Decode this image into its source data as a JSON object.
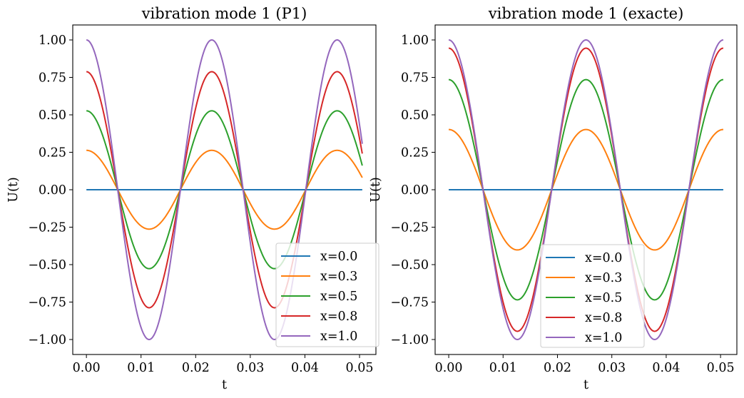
{
  "chart_data": [
    {
      "type": "line",
      "title": "vibration mode 1 (P1)",
      "xlabel": "t",
      "ylabel": "U(t)",
      "xlim": [
        -0.0025,
        0.053
      ],
      "ylim": [
        -1.1,
        1.1
      ],
      "xticks": [
        0.0,
        0.01,
        0.02,
        0.03,
        0.04,
        0.05
      ],
      "xtick_labels": [
        "0.00",
        "0.01",
        "0.02",
        "0.03",
        "0.04",
        "0.05"
      ],
      "yticks": [
        1.0,
        0.75,
        0.5,
        0.25,
        0.0,
        -0.25,
        -0.5,
        -0.75,
        -1.0
      ],
      "ytick_labels": [
        "1.00",
        "0.75",
        "0.50",
        "0.25",
        "0.00",
        "−0.25",
        "−0.50",
        "−0.75",
        "−1.00"
      ],
      "grid": false,
      "legend_position": "lower-right",
      "t_range": [
        0.0,
        0.0505
      ],
      "period": 0.02295,
      "series": [
        {
          "name": "x=0.0",
          "amplitude": 0.0,
          "color": "#1f77b4"
        },
        {
          "name": "x=0.3",
          "amplitude": 0.263,
          "color": "#ff7f0e"
        },
        {
          "name": "x=0.5",
          "amplitude": 0.527,
          "color": "#2ca02c"
        },
        {
          "name": "x=0.8",
          "amplitude": 0.788,
          "color": "#d62728"
        },
        {
          "name": "x=1.0",
          "amplitude": 1.0,
          "color": "#9467bd"
        }
      ]
    },
    {
      "type": "line",
      "title": "vibration mode 1 (exacte)",
      "xlabel": "t",
      "ylabel": "U(t)",
      "xlim": [
        -0.0025,
        0.053
      ],
      "ylim": [
        -1.1,
        1.1
      ],
      "xticks": [
        0.0,
        0.01,
        0.02,
        0.03,
        0.04,
        0.05
      ],
      "xtick_labels": [
        "0.00",
        "0.01",
        "0.02",
        "0.03",
        "0.04",
        "0.05"
      ],
      "yticks": [
        1.0,
        0.75,
        0.5,
        0.25,
        0.0,
        -0.25,
        -0.5,
        -0.75,
        -1.0
      ],
      "ytick_labels": [
        "1.00",
        "0.75",
        "0.50",
        "0.25",
        "0.00",
        "−0.25",
        "−0.50",
        "−0.75",
        "−1.00"
      ],
      "grid": false,
      "legend_position": "lower-center",
      "t_range": [
        0.0,
        0.0505
      ],
      "period": 0.02525,
      "series": [
        {
          "name": "x=0.0",
          "amplitude": 0.0,
          "color": "#1f77b4"
        },
        {
          "name": "x=0.3",
          "amplitude": 0.402,
          "color": "#ff7f0e"
        },
        {
          "name": "x=0.5",
          "amplitude": 0.735,
          "color": "#2ca02c"
        },
        {
          "name": "x=0.8",
          "amplitude": 0.945,
          "color": "#d62728"
        },
        {
          "name": "x=1.0",
          "amplitude": 1.0,
          "color": "#9467bd"
        }
      ]
    }
  ]
}
